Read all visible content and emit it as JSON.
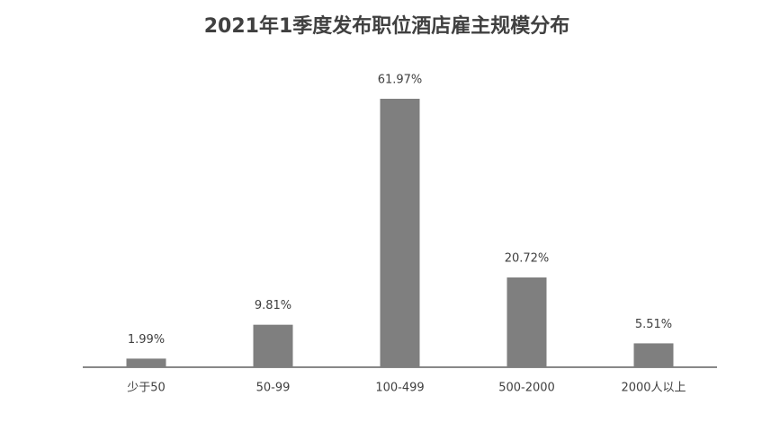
{
  "chart_data": {
    "type": "bar",
    "title": "2021年1季度发布职位酒店雇主规模分布",
    "categories": [
      "少于50",
      "50-99",
      "100-499",
      "500-2000",
      "2000人以上"
    ],
    "values": [
      1.99,
      9.81,
      61.97,
      20.72,
      5.51
    ],
    "value_labels": [
      "1.99%",
      "9.81%",
      "61.97%",
      "20.72%",
      "5.51%"
    ],
    "color": "#7f7f7f"
  }
}
